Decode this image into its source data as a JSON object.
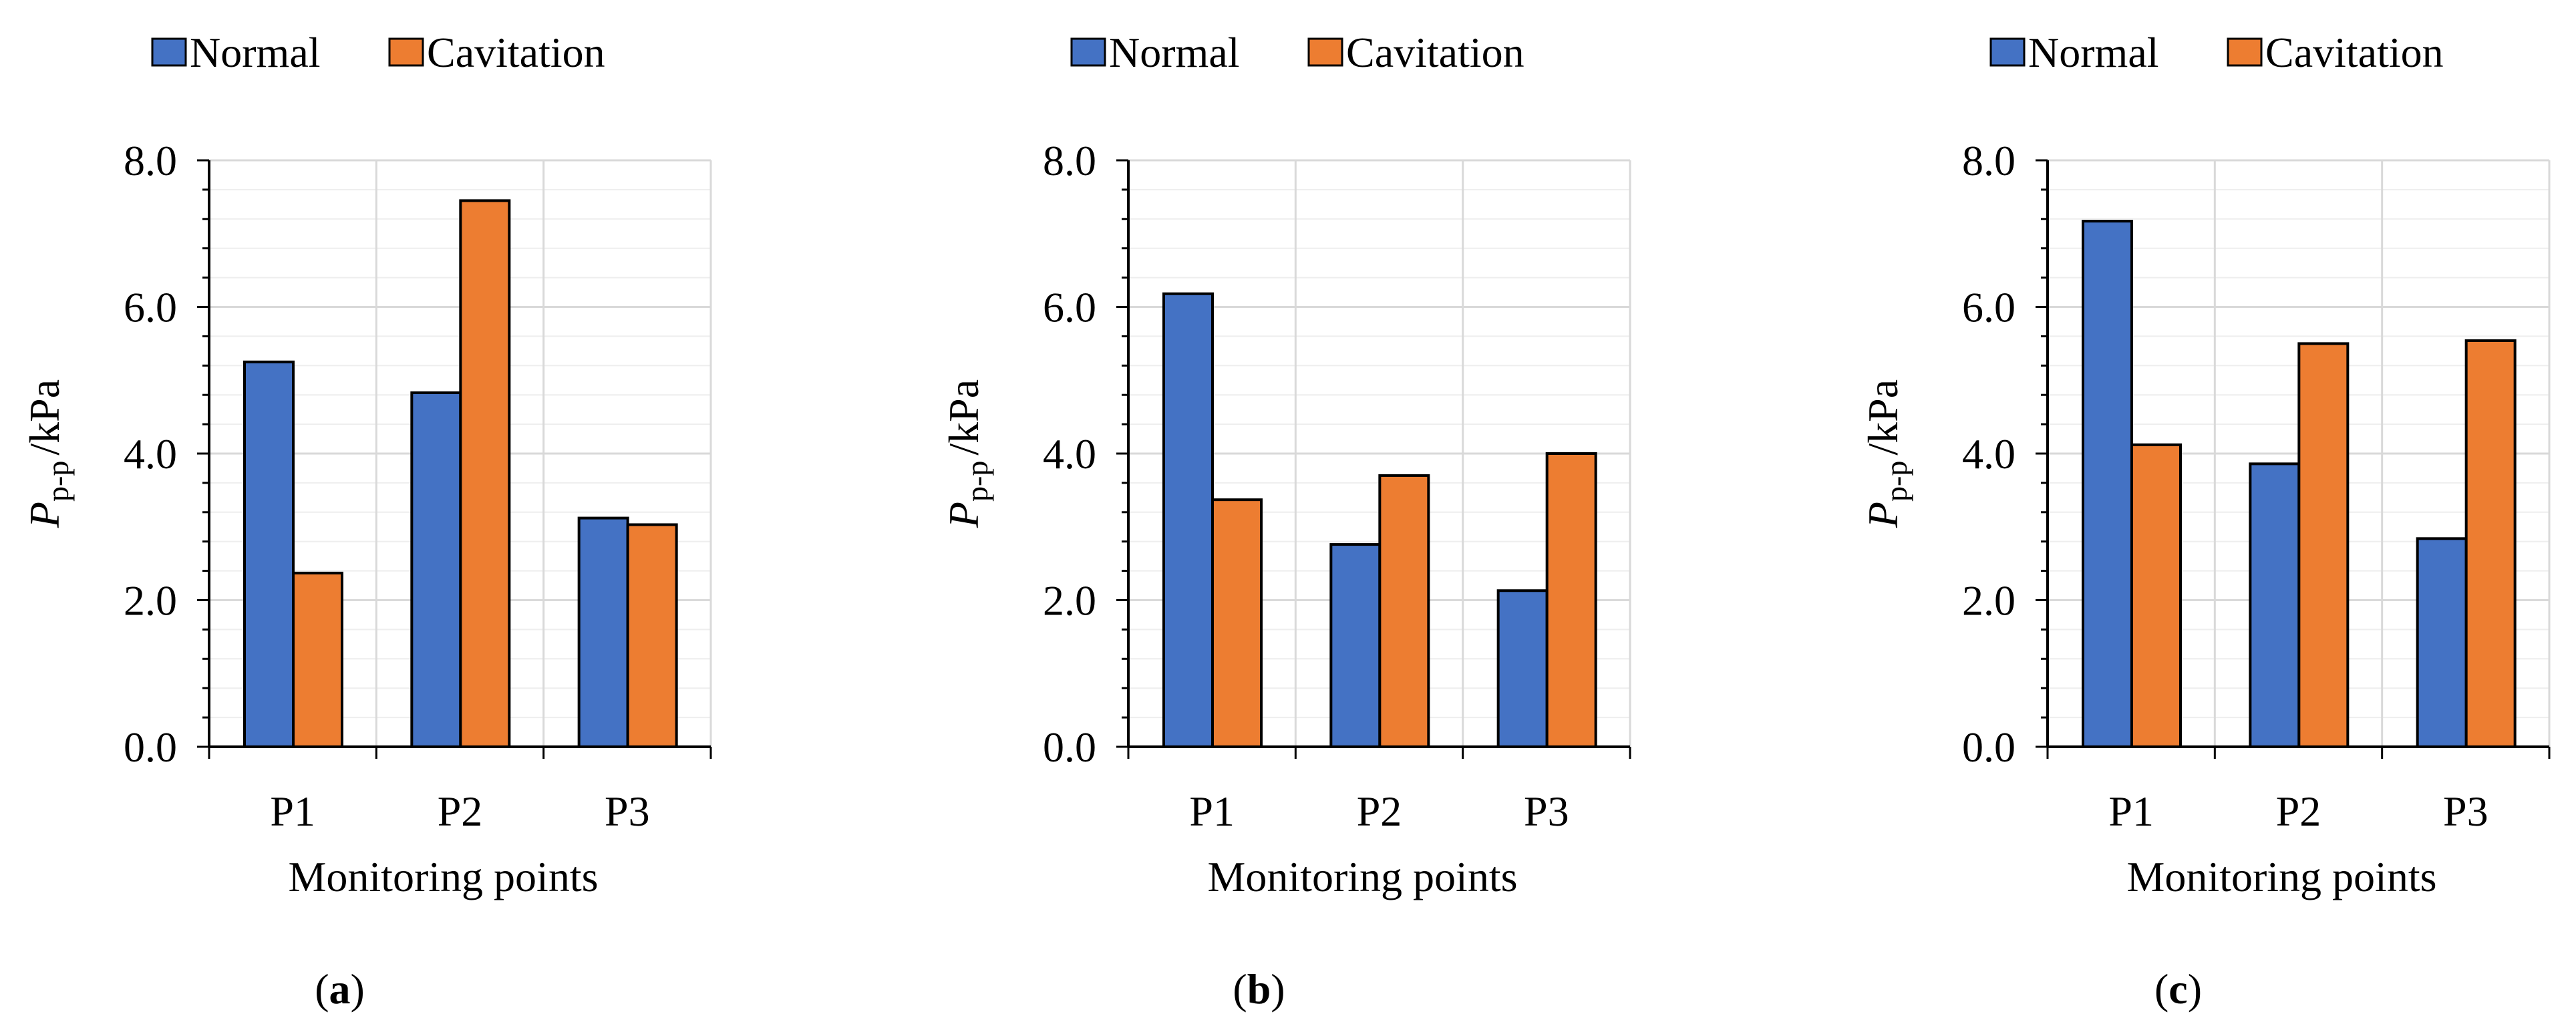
{
  "figure": {
    "panel_labels": [
      "a",
      "b",
      "c"
    ]
  },
  "colors": {
    "normal": "#4472C4",
    "cavitation": "#ED7D31",
    "grid": "#D9D9D9",
    "axis": "#000000"
  },
  "chart_data": [
    {
      "type": "bar",
      "panel": "a",
      "categories": [
        "P1",
        "P2",
        "P3"
      ],
      "series": [
        {
          "name": "Normal",
          "values": [
            5.25,
            4.83,
            3.12
          ]
        },
        {
          "name": "Cavitation",
          "values": [
            2.37,
            7.45,
            3.03
          ]
        }
      ],
      "ylabel_main": "P",
      "ylabel_sub": "p-p",
      "ylabel_unit": "/kPa",
      "xlabel": "Monitoring points",
      "ylim": [
        0,
        8
      ],
      "yticks": [
        "0.0",
        "2.0",
        "4.0",
        "6.0",
        "8.0"
      ],
      "ytick_values": [
        0,
        2,
        4,
        6,
        8
      ],
      "minor_step": 0.4,
      "grid": true,
      "legend": "top"
    },
    {
      "type": "bar",
      "panel": "b",
      "categories": [
        "P1",
        "P2",
        "P3"
      ],
      "series": [
        {
          "name": "Normal",
          "values": [
            6.18,
            2.76,
            2.13
          ]
        },
        {
          "name": "Cavitation",
          "values": [
            3.37,
            3.7,
            4.0
          ]
        }
      ],
      "ylabel_main": "P",
      "ylabel_sub": "p-p",
      "ylabel_unit": "/kPa",
      "xlabel": "Monitoring points",
      "ylim": [
        0,
        8
      ],
      "yticks": [
        "0.0",
        "2.0",
        "4.0",
        "6.0",
        "8.0"
      ],
      "ytick_values": [
        0,
        2,
        4,
        6,
        8
      ],
      "minor_step": 0.4,
      "grid": true,
      "legend": "top"
    },
    {
      "type": "bar",
      "panel": "c",
      "categories": [
        "P1",
        "P2",
        "P3"
      ],
      "series": [
        {
          "name": "Normal",
          "values": [
            7.17,
            3.86,
            2.84
          ]
        },
        {
          "name": "Cavitation",
          "values": [
            4.12,
            5.5,
            5.54
          ]
        }
      ],
      "ylabel_main": "P",
      "ylabel_sub": "p-p",
      "ylabel_unit": "/kPa",
      "xlabel": "Monitoring points",
      "ylim": [
        0,
        8
      ],
      "yticks": [
        "0.0",
        "2.0",
        "4.0",
        "6.0",
        "8.0"
      ],
      "ytick_values": [
        0,
        2,
        4,
        6,
        8
      ],
      "minor_step": 0.4,
      "grid": true,
      "legend": "top"
    }
  ]
}
